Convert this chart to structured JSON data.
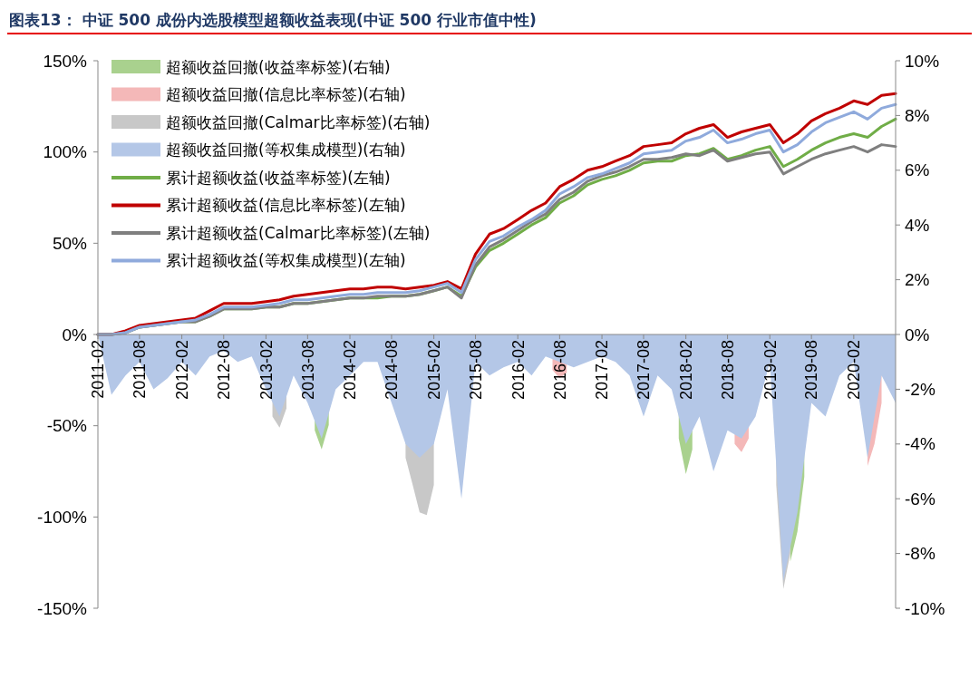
{
  "chart_data": {
    "type": "line",
    "title": "图表13：  中证 500 成份内选股模型超额收益表现(中证 500 行业市值中性)",
    "x": [
      "2011-02",
      "2011-04",
      "2011-06",
      "2011-08",
      "2011-10",
      "2011-12",
      "2012-02",
      "2012-04",
      "2012-06",
      "2012-08",
      "2012-10",
      "2012-12",
      "2013-02",
      "2013-04",
      "2013-06",
      "2013-08",
      "2013-10",
      "2013-12",
      "2014-02",
      "2014-04",
      "2014-06",
      "2014-08",
      "2014-10",
      "2014-12",
      "2015-02",
      "2015-04",
      "2015-06",
      "2015-08",
      "2015-10",
      "2015-12",
      "2016-02",
      "2016-04",
      "2016-06",
      "2016-08",
      "2016-10",
      "2016-12",
      "2017-02",
      "2017-04",
      "2017-06",
      "2017-08",
      "2017-10",
      "2017-12",
      "2018-02",
      "2018-04",
      "2018-06",
      "2018-08",
      "2018-10",
      "2018-12",
      "2019-02",
      "2019-04",
      "2019-06",
      "2019-08",
      "2019-10",
      "2019-12",
      "2020-02",
      "2020-04",
      "2020-06",
      "2020-08"
    ],
    "series": [
      {
        "name": "超额收益回撤(收益率标签)(右轴)",
        "type": "area",
        "axis": "y2",
        "color": "#a9d18e",
        "x": [
          "2013-09",
          "2013-10",
          "2013-11",
          "2015-01",
          "2018-01",
          "2018-02",
          "2018-03",
          "2018-10",
          "2019-05",
          "2019-06",
          "2019-07"
        ],
        "values": [
          -3.5,
          -4.2,
          -3.3,
          null,
          -3.8,
          -5.1,
          -4.2,
          null,
          -8.3,
          -7.2,
          -5.2
        ]
      },
      {
        "name": "超额收益回撤(信息比率标签)(右轴)",
        "type": "area",
        "axis": "y2",
        "color": "#f4b8b8",
        "x": [
          "2016-07",
          "2016-08",
          "2016-09",
          "2017-06",
          "2018-09",
          "2018-10",
          "2018-11",
          "2019-06",
          "2020-04",
          "2020-05",
          "2020-06"
        ],
        "values": [
          -1.3,
          -1.6,
          -1.4,
          null,
          -4.0,
          -4.3,
          -3.8,
          null,
          -4.8,
          -4.0,
          -2.5
        ]
      },
      {
        "name": "超额收益回撤(Calmar比率标签)(右轴)",
        "type": "area",
        "axis": "y2",
        "color": "#c8c8c8",
        "x": [
          "2013-03",
          "2013-04",
          "2013-05",
          "2014-01",
          "2014-10",
          "2014-11",
          "2014-12",
          "2015-01",
          "2015-02",
          "2017-01",
          "2019-03",
          "2019-04",
          "2019-05"
        ],
        "values": [
          -3.0,
          -3.4,
          -2.7,
          null,
          -4.5,
          -5.5,
          -6.5,
          -6.6,
          -5.5,
          null,
          -5.5,
          -9.3,
          -8.0
        ]
      },
      {
        "name": "超额收益回撤(等权集成模型)(右轴)",
        "type": "area",
        "axis": "y2",
        "color": "#b4c7e7",
        "values": [
          0,
          -2.2,
          -1.5,
          -1.0,
          -2.0,
          -1.6,
          -1.0,
          -1.5,
          -0.8,
          -0.6,
          -1.0,
          -0.8,
          -2.0,
          -3.0,
          -1.5,
          -2.5,
          -3.8,
          -2.0,
          -1.5,
          -1.0,
          -1.0,
          -2.5,
          -4.0,
          -4.5,
          -4.0,
          -2.0,
          -6.0,
          -1.0,
          -1.5,
          -1.2,
          -1.0,
          -1.5,
          -0.8,
          -1.0,
          -1.2,
          -1.0,
          -0.8,
          -1.0,
          -1.5,
          -3.0,
          -1.5,
          -2.0,
          -4.0,
          -3.0,
          -5.0,
          -3.5,
          -3.8,
          -3.0,
          -1.0,
          -9.0,
          -6.5,
          -2.5,
          -3.0,
          -1.5,
          -1.0,
          -4.5,
          -1.5,
          -2.5
        ]
      },
      {
        "name": "累计超额收益(收益率标签)(左轴)",
        "type": "line",
        "color": "#70ad47",
        "values": [
          0,
          0,
          1,
          4,
          5,
          6,
          7,
          7,
          10,
          14,
          14,
          14,
          15,
          15,
          17,
          17,
          18,
          19,
          20,
          20,
          20,
          21,
          21,
          22,
          24,
          26,
          21,
          37,
          46,
          50,
          55,
          60,
          64,
          72,
          76,
          82,
          85,
          87,
          90,
          94,
          95,
          95,
          98,
          99,
          102,
          96,
          98,
          101,
          103,
          92,
          96,
          101,
          105,
          108,
          110,
          108,
          114,
          118
        ]
      },
      {
        "name": "累计超额收益(信息比率标签)(左轴)",
        "type": "line",
        "color": "#c00000",
        "values": [
          0,
          0,
          2,
          5,
          6,
          7,
          8,
          9,
          13,
          17,
          17,
          17,
          18,
          19,
          21,
          22,
          23,
          24,
          25,
          25,
          26,
          26,
          25,
          26,
          27,
          29,
          25,
          44,
          55,
          58,
          63,
          68,
          72,
          81,
          85,
          90,
          92,
          95,
          98,
          103,
          104,
          105,
          110,
          113,
          115,
          108,
          111,
          113,
          115,
          105,
          110,
          117,
          121,
          124,
          128,
          126,
          131,
          132
        ]
      },
      {
        "name": "累计超额收益(Calmar比率标签)(左轴)",
        "type": "line",
        "color": "#7f7f7f",
        "values": [
          0,
          0,
          1,
          4,
          5,
          6,
          7,
          7,
          10,
          14,
          14,
          14,
          15,
          15,
          17,
          17,
          18,
          19,
          20,
          20,
          21,
          21,
          21,
          22,
          24,
          26,
          20,
          38,
          48,
          52,
          57,
          62,
          66,
          74,
          78,
          84,
          87,
          89,
          92,
          96,
          96,
          97,
          99,
          98,
          101,
          95,
          97,
          99,
          100,
          88,
          92,
          96,
          99,
          101,
          103,
          100,
          104,
          103
        ]
      },
      {
        "name": "累计超额收益(等权集成模型)(左轴)",
        "type": "line",
        "color": "#8faadc",
        "values": [
          0,
          0,
          1,
          4,
          5,
          6,
          7,
          8,
          11,
          15,
          15,
          15,
          16,
          17,
          19,
          19,
          20,
          21,
          22,
          22,
          23,
          23,
          23,
          24,
          26,
          28,
          23,
          41,
          51,
          54,
          59,
          63,
          68,
          77,
          81,
          86,
          88,
          91,
          94,
          99,
          100,
          101,
          106,
          108,
          112,
          105,
          107,
          110,
          112,
          100,
          104,
          111,
          116,
          119,
          122,
          118,
          124,
          126
        ]
      }
    ],
    "xlim": [
      "2011-02",
      "2020-08"
    ],
    "xticks": [
      "2011-02",
      "2011-08",
      "2012-02",
      "2012-08",
      "2013-02",
      "2013-08",
      "2014-02",
      "2014-08",
      "2015-02",
      "2015-08",
      "2016-02",
      "2016-08",
      "2017-02",
      "2017-08",
      "2018-02",
      "2018-08",
      "2019-02",
      "2019-08",
      "2020-02"
    ],
    "ylim": [
      -150,
      150
    ],
    "yticks": [
      {
        "value": -150,
        "label": "-150%"
      },
      {
        "value": -100,
        "label": "-100%"
      },
      {
        "value": -50,
        "label": "-50%"
      },
      {
        "value": 0,
        "label": "0%"
      },
      {
        "value": 50,
        "label": "50%"
      },
      {
        "value": 100,
        "label": "100%"
      },
      {
        "value": 150,
        "label": "150%"
      }
    ],
    "y2lim": [
      -10,
      10
    ],
    "y2ticks": [
      {
        "value": -10,
        "label": "-10%"
      },
      {
        "value": -8,
        "label": "-8%"
      },
      {
        "value": -6,
        "label": "-6%"
      },
      {
        "value": -4,
        "label": "-4%"
      },
      {
        "value": -2,
        "label": "-2%"
      },
      {
        "value": 0,
        "label": "0%"
      },
      {
        "value": 2,
        "label": "2%"
      },
      {
        "value": 4,
        "label": "4%"
      },
      {
        "value": 6,
        "label": "6%"
      },
      {
        "value": 8,
        "label": "8%"
      },
      {
        "value": 10,
        "label": "10%"
      }
    ],
    "legend": "top left",
    "grid": false,
    "marker": "none",
    "line_style": "solid"
  }
}
